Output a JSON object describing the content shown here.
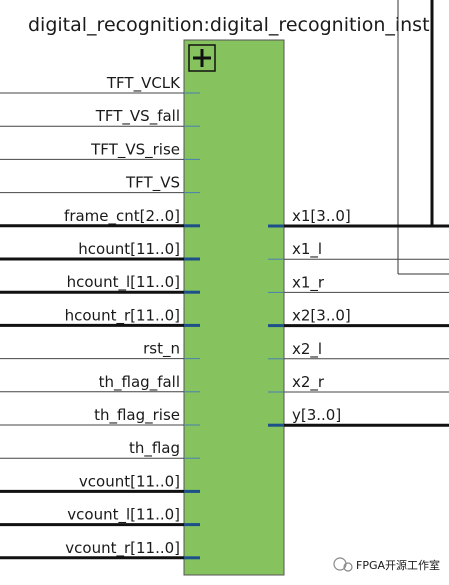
{
  "title": "digital_recognition:digital_recognition_inst",
  "inputs": [
    "TFT_VCLK",
    "TFT_VS_fall",
    "TFT_VS_rise",
    "TFT_VS",
    "frame_cnt[2..0]",
    "hcount[11..0]",
    "hcount_l[11..0]",
    "hcount_r[11..0]",
    "rst_n",
    "th_flag_fall",
    "th_flag_rise",
    "th_flag",
    "vcount[11..0]",
    "vcount_l[11..0]",
    "vcount_r[11..0]"
  ],
  "outputs": [
    "x1[3..0]",
    "x1_l",
    "x1_r",
    "x2[3..0]",
    "x2_l",
    "x2_r",
    "y[3..0]"
  ],
  "watermark": "FPGA开源工作室"
}
